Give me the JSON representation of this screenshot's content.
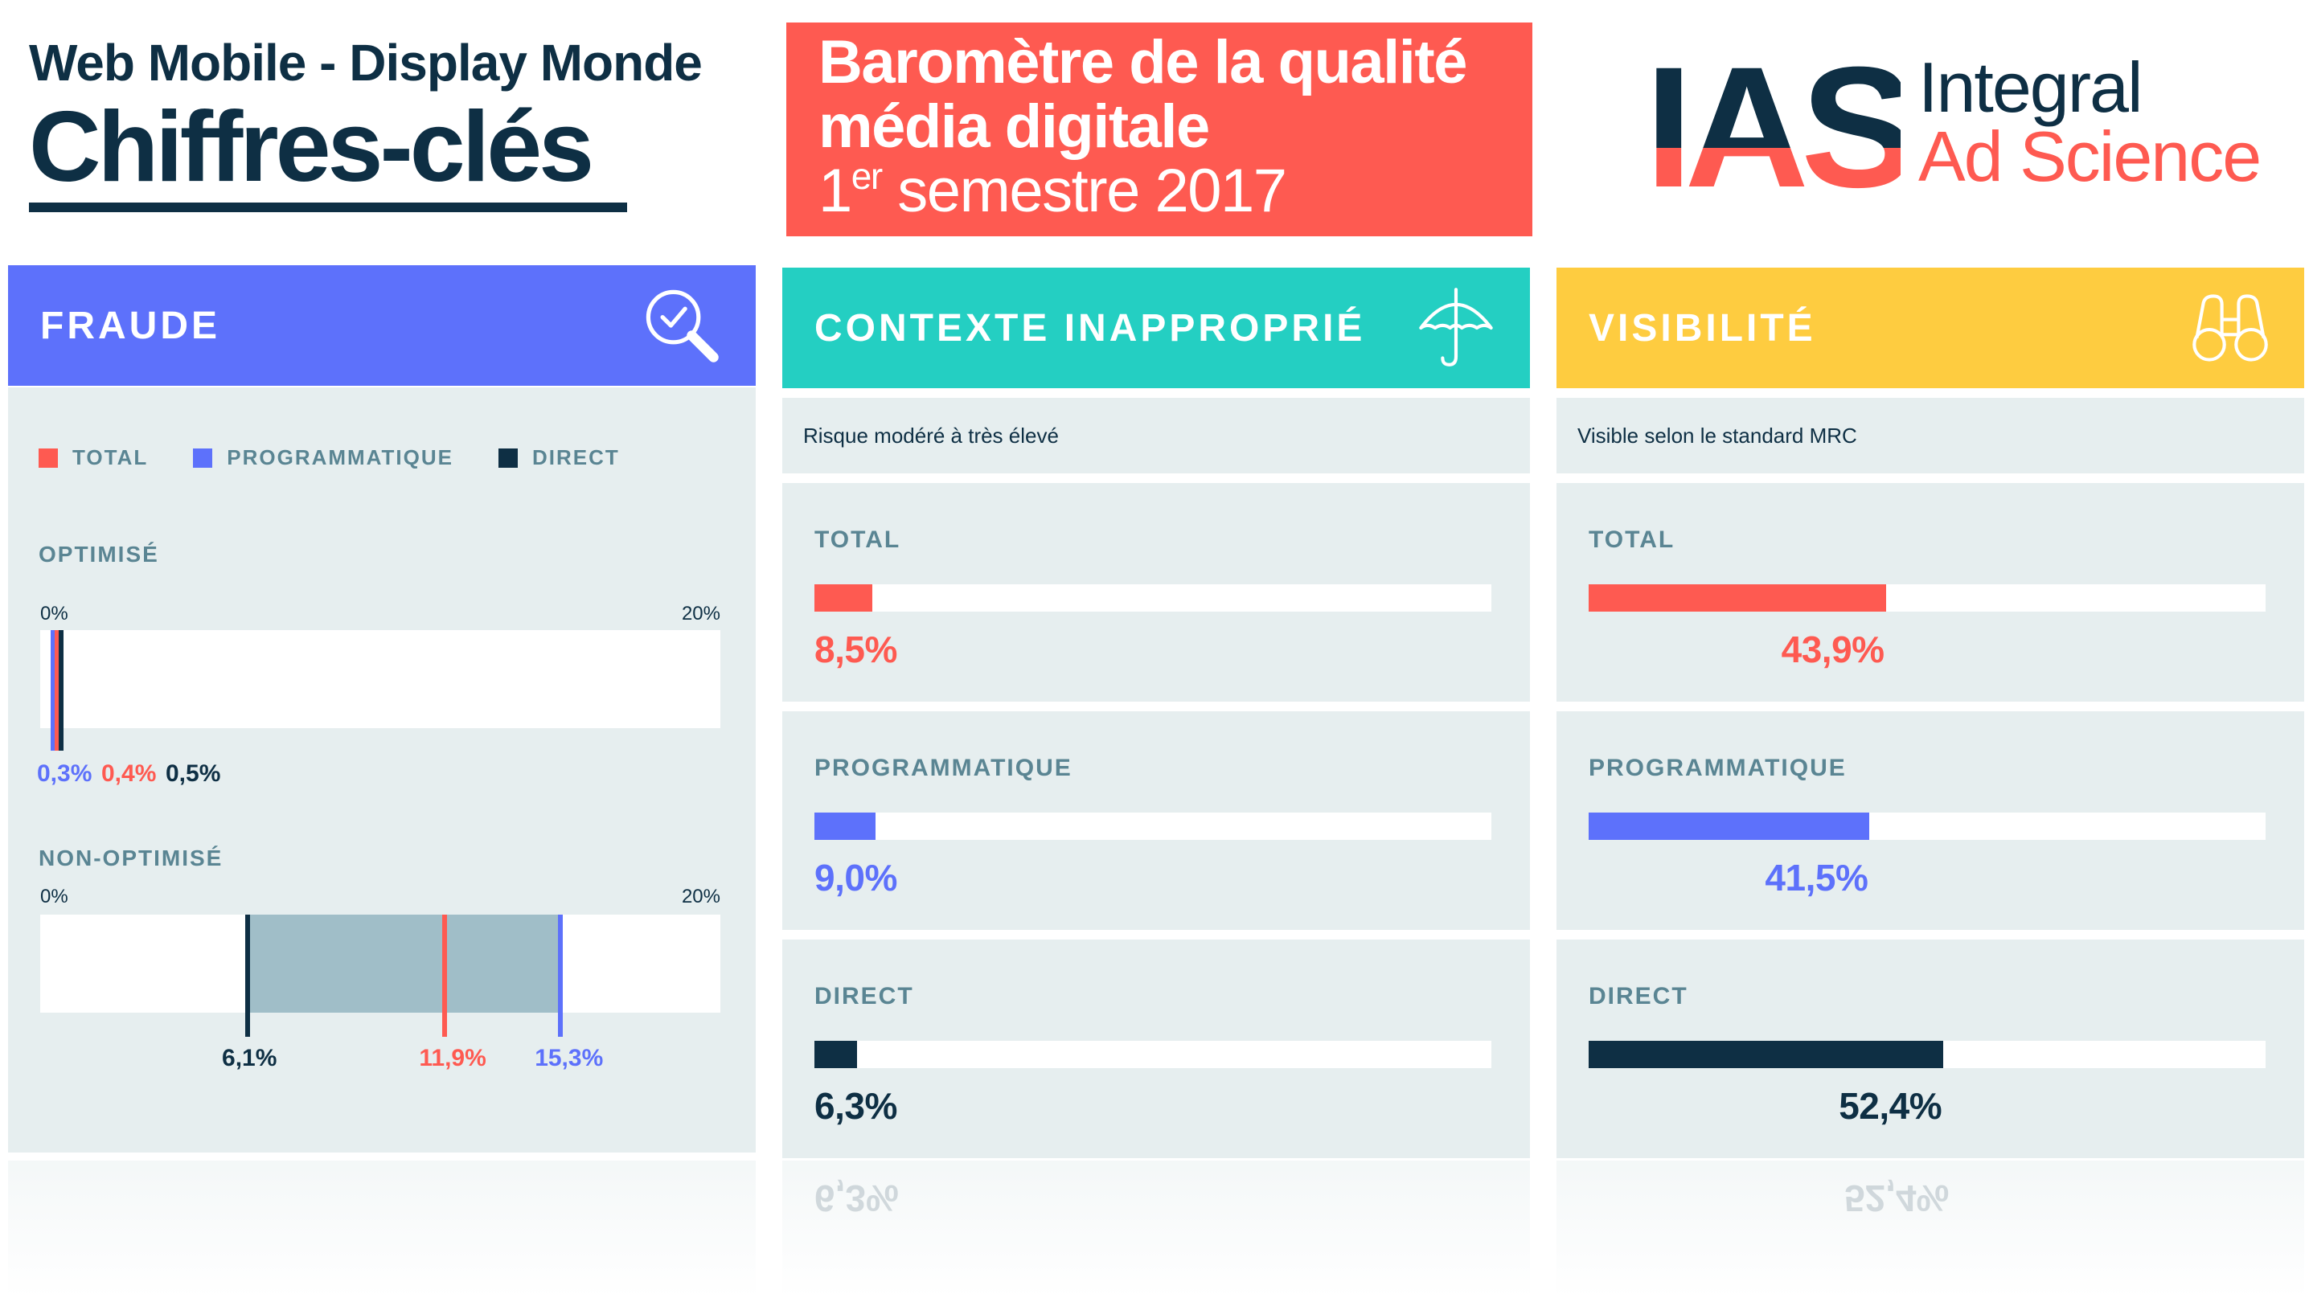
{
  "header": {
    "subtitle": "Web Mobile - Display Monde",
    "title": "Chiffres-clés",
    "barometer": {
      "line1": "Baromètre de la qualité",
      "line2": "média digitale",
      "semester_number": "1",
      "semester_sup": "er",
      "semester_rest": " semestre 2017"
    },
    "logo": {
      "mark": "IAS",
      "line1": "Integral",
      "line2": "Ad Science"
    }
  },
  "colors": {
    "total": "#fe5a51",
    "programmatique": "#5d71fb",
    "direct": "#0e2f44",
    "fraude_header": "#5d71fb",
    "contexte_header": "#24cfc2",
    "visibilite_header": "#fecc40",
    "panel_bg": "#e6eeef",
    "label": "#5a8593"
  },
  "fraude": {
    "title": "FRAUDE",
    "icon": "magnifier-check-icon",
    "legend": [
      {
        "key": "total",
        "label": "TOTAL"
      },
      {
        "key": "programmatique",
        "label": "PROGRAMMATIQUE"
      },
      {
        "key": "direct",
        "label": "DIRECT"
      }
    ],
    "axis_min_label": "0%",
    "axis_max_label": "20%",
    "optimise": {
      "label": "OPTIMISÉ"
    },
    "non_optimise": {
      "label": "NON-OPTIMISÉ"
    }
  },
  "contexte": {
    "title": "CONTEXTE INAPPROPRIÉ",
    "icon": "umbrella-icon",
    "subtitle": "Risque modéré à très élevé",
    "metrics": [
      {
        "key": "total",
        "label": "TOTAL",
        "value": "8,5%"
      },
      {
        "key": "programmatique",
        "label": "PROGRAMMATIQUE",
        "value": "9,0%"
      },
      {
        "key": "direct",
        "label": "DIRECT",
        "value": "6,3%"
      }
    ]
  },
  "visibilite": {
    "title": "VISIBILITÉ",
    "icon": "binoculars-icon",
    "subtitle": "Visible selon le standard MRC",
    "metrics": [
      {
        "key": "total",
        "label": "TOTAL",
        "value": "43,9%"
      },
      {
        "key": "programmatique",
        "label": "PROGRAMMATIQUE",
        "value": "41,5%"
      },
      {
        "key": "direct",
        "label": "DIRECT",
        "value": "52,4%"
      }
    ]
  },
  "chart_data": [
    {
      "type": "bar",
      "title": "FRAUDE - OPTIMISÉ",
      "categories": [
        "PROGRAMMATIQUE",
        "TOTAL",
        "DIRECT"
      ],
      "values": [
        0.3,
        0.4,
        0.5
      ],
      "value_labels": [
        "0,3%",
        "0,4%",
        "0,5%"
      ],
      "xlim": [
        0,
        20
      ],
      "unit": "%"
    },
    {
      "type": "bar",
      "title": "FRAUDE - NON-OPTIMISÉ",
      "categories": [
        "DIRECT",
        "TOTAL",
        "PROGRAMMATIQUE"
      ],
      "values": [
        6.1,
        11.9,
        15.3
      ],
      "value_labels": [
        "6,1%",
        "11,9%",
        "15,3%"
      ],
      "xlim": [
        0,
        20
      ],
      "unit": "%"
    },
    {
      "type": "bar",
      "title": "CONTEXTE INAPPROPRIÉ",
      "categories": [
        "TOTAL",
        "PROGRAMMATIQUE",
        "DIRECT"
      ],
      "values": [
        8.5,
        9.0,
        6.3
      ],
      "xlim": [
        0,
        100
      ],
      "unit": "%"
    },
    {
      "type": "bar",
      "title": "VISIBILITÉ",
      "categories": [
        "TOTAL",
        "PROGRAMMATIQUE",
        "DIRECT"
      ],
      "values": [
        43.9,
        41.5,
        52.4
      ],
      "xlim": [
        0,
        100
      ],
      "unit": "%"
    }
  ]
}
